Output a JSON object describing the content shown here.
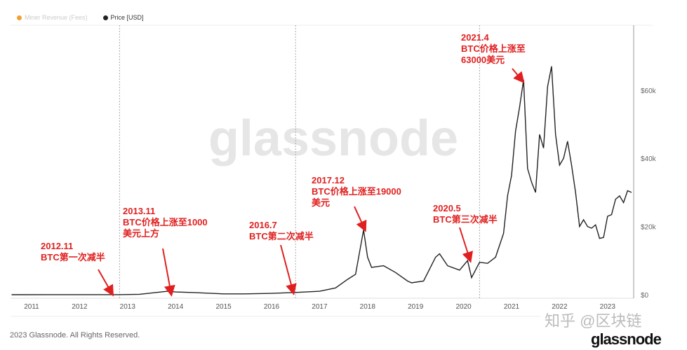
{
  "legend": [
    {
      "label": "Miner Revenue (Fees)",
      "color": "#f0a030",
      "active": false
    },
    {
      "label": "Price [USD]",
      "color": "#222222",
      "active": true
    }
  ],
  "watermark": "glassnode",
  "footer": "2023 Glassnode. All Rights Reserved.",
  "logo": "glassnode",
  "zhihu_watermark": "知乎 @区块链",
  "chart_data": {
    "type": "line",
    "title": "",
    "xlabel": "",
    "ylabel": "",
    "x_ticks": [
      "2011",
      "2012",
      "2013",
      "2014",
      "2015",
      "2016",
      "2017",
      "2018",
      "2019",
      "2020",
      "2021",
      "2022",
      "2023"
    ],
    "y_ticks": [
      "$0",
      "$20k",
      "$40k",
      "$60k"
    ],
    "y_tick_values": [
      0,
      20000,
      40000,
      60000
    ],
    "ylim": [
      0,
      70000
    ],
    "xlim": [
      "2010-07",
      "2023-07"
    ],
    "y_axis_position": "right",
    "grid": false,
    "legend_placement": "top-left",
    "halving_lines": [
      "2012-11",
      "2016-07",
      "2020-05"
    ],
    "series": [
      {
        "name": "Price [USD]",
        "color": "#222222",
        "points": [
          [
            "2010-08",
            0.07
          ],
          [
            "2011-06",
            15
          ],
          [
            "2012-11",
            12
          ],
          [
            "2013-04",
            130
          ],
          [
            "2013-11",
            1000
          ],
          [
            "2014-01",
            800
          ],
          [
            "2014-06",
            600
          ],
          [
            "2015-01",
            250
          ],
          [
            "2015-06",
            250
          ],
          [
            "2016-01",
            400
          ],
          [
            "2016-07",
            650
          ],
          [
            "2017-01",
            1000
          ],
          [
            "2017-05",
            2000
          ],
          [
            "2017-08",
            4500
          ],
          [
            "2017-10",
            6000
          ],
          [
            "2017-12",
            19000
          ],
          [
            "2018-01",
            11000
          ],
          [
            "2018-02",
            8000
          ],
          [
            "2018-05",
            8500
          ],
          [
            "2018-08",
            6500
          ],
          [
            "2018-11",
            4000
          ],
          [
            "2018-12",
            3500
          ],
          [
            "2019-03",
            4000
          ],
          [
            "2019-06",
            11000
          ],
          [
            "2019-07",
            12000
          ],
          [
            "2019-09",
            8500
          ],
          [
            "2019-12",
            7200
          ],
          [
            "2020-02",
            10000
          ],
          [
            "2020-03",
            5000
          ],
          [
            "2020-05",
            9500
          ],
          [
            "2020-07",
            9200
          ],
          [
            "2020-09",
            11000
          ],
          [
            "2020-11",
            18000
          ],
          [
            "2020-12",
            29000
          ],
          [
            "2021-01",
            35000
          ],
          [
            "2021-02",
            48000
          ],
          [
            "2021-03",
            55000
          ],
          [
            "2021-04",
            63000
          ],
          [
            "2021-05",
            37000
          ],
          [
            "2021-06",
            33000
          ],
          [
            "2021-07",
            30000
          ],
          [
            "2021-08",
            47000
          ],
          [
            "2021-09",
            43000
          ],
          [
            "2021-10",
            61000
          ],
          [
            "2021-11",
            67000
          ],
          [
            "2021-12",
            47000
          ],
          [
            "2022-01",
            38000
          ],
          [
            "2022-02",
            40000
          ],
          [
            "2022-03",
            45000
          ],
          [
            "2022-04",
            38000
          ],
          [
            "2022-05",
            30000
          ],
          [
            "2022-06",
            20000
          ],
          [
            "2022-07",
            22000
          ],
          [
            "2022-08",
            20000
          ],
          [
            "2022-09",
            19500
          ],
          [
            "2022-10",
            20500
          ],
          [
            "2022-11",
            16500
          ],
          [
            "2022-12",
            16800
          ],
          [
            "2023-01",
            23000
          ],
          [
            "2023-02",
            23500
          ],
          [
            "2023-03",
            28000
          ],
          [
            "2023-04",
            29000
          ],
          [
            "2023-05",
            27000
          ],
          [
            "2023-06",
            30500
          ],
          [
            "2023-07",
            30000
          ]
        ]
      }
    ],
    "annotations": [
      {
        "date": "2012-11",
        "lines": [
          "2012.11",
          "BTC第一次减半"
        ]
      },
      {
        "date": "2013-11",
        "lines": [
          "2013.11",
          "BTC价格上涨至1000",
          "美元上方"
        ]
      },
      {
        "date": "2016-07",
        "lines": [
          "2016.7",
          "BTC第二次减半"
        ]
      },
      {
        "date": "2017-12",
        "lines": [
          "2017.12",
          "BTC价格上涨至19000",
          "美元"
        ]
      },
      {
        "date": "2020-05",
        "lines": [
          "2020.5",
          "BTC第三次减半"
        ]
      },
      {
        "date": "2021-04",
        "lines": [
          "2021.4",
          "BTC价格上涨至",
          "63000美元"
        ]
      }
    ],
    "annotation_color": "#e02020"
  }
}
